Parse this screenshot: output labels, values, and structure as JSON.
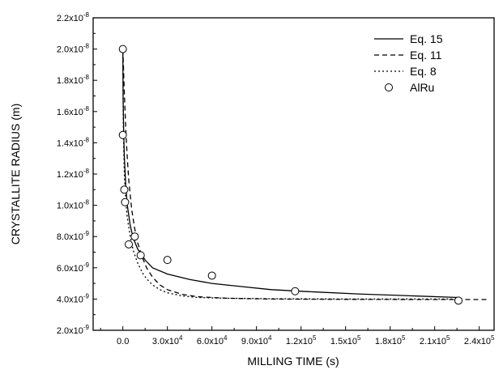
{
  "chart_data": {
    "type": "line",
    "xlabel": "MILLING TIME (s)",
    "ylabel": "CRYSTALLITE RADIUS (m)",
    "xlim": [
      -20000,
      250000
    ],
    "ylim": [
      2e-09,
      2.2e-08
    ],
    "grid": false,
    "legend_position": "top-right",
    "x_ticks": [
      {
        "value": 0,
        "base": "0.0",
        "exp": ""
      },
      {
        "value": 30000,
        "base": "3.0x10",
        "exp": "4"
      },
      {
        "value": 60000,
        "base": "6.0x10",
        "exp": "4"
      },
      {
        "value": 90000,
        "base": "9.0x10",
        "exp": "4"
      },
      {
        "value": 120000,
        "base": "1.2x10",
        "exp": "5"
      },
      {
        "value": 150000,
        "base": "1.5x10",
        "exp": "5"
      },
      {
        "value": 180000,
        "base": "1.8x10",
        "exp": "5"
      },
      {
        "value": 210000,
        "base": "2.1x10",
        "exp": "5"
      },
      {
        "value": 240000,
        "base": "2.4x10",
        "exp": "5"
      }
    ],
    "y_ticks": [
      {
        "value": 2e-09,
        "base": "2.0x10",
        "exp": "-9"
      },
      {
        "value": 4e-09,
        "base": "4.0x10",
        "exp": "-9"
      },
      {
        "value": 6e-09,
        "base": "6.0x10",
        "exp": "-9"
      },
      {
        "value": 8e-09,
        "base": "8.0x10",
        "exp": "-9"
      },
      {
        "value": 1e-08,
        "base": "1.0x10",
        "exp": "-8"
      },
      {
        "value": 1.2e-08,
        "base": "1.2x10",
        "exp": "-8"
      },
      {
        "value": 1.4e-08,
        "base": "1.4x10",
        "exp": "-8"
      },
      {
        "value": 1.6e-08,
        "base": "1.6x10",
        "exp": "-8"
      },
      {
        "value": 1.8e-08,
        "base": "1.8x10",
        "exp": "-8"
      },
      {
        "value": 2e-08,
        "base": "2.0x10",
        "exp": "-8"
      },
      {
        "value": 2.2e-08,
        "base": "2.2x10",
        "exp": "-8"
      }
    ],
    "series": [
      {
        "name": "Eq. 15",
        "style": "solid",
        "x": [
          0,
          200,
          500,
          1000,
          2000,
          3000,
          5000,
          7000,
          10000,
          15000,
          20000,
          30000,
          45000,
          60000,
          80000,
          100000,
          130000,
          160000,
          190000,
          226000
        ],
        "y": [
          2e-08,
          1.68e-08,
          1.5e-08,
          1.31e-08,
          1.12e-08,
          1e-08,
          8.7e-09,
          7.9e-09,
          7.2e-09,
          6.5e-09,
          6e-09,
          5.6e-09,
          5.25e-09,
          5e-09,
          4.8e-09,
          4.6e-09,
          4.45e-09,
          4.32e-09,
          4.22e-09,
          4.1e-09
        ]
      },
      {
        "name": "Eq. 11",
        "style": "dashed",
        "x": [
          0,
          1000,
          2000,
          3000,
          4000,
          6000,
          8000,
          10000,
          13000,
          16000,
          20000,
          25000,
          30000,
          40000,
          50000,
          70000,
          100000,
          150000,
          200000,
          226000,
          245000
        ],
        "y": [
          2e-08,
          1.72e-08,
          1.48e-08,
          1.3e-08,
          1.16e-08,
          9.7e-09,
          8.5e-09,
          7.6e-09,
          6.7e-09,
          6e-09,
          5.4e-09,
          4.9e-09,
          4.6e-09,
          4.3e-09,
          4.15e-09,
          4.05e-09,
          4e-09,
          3.98e-09,
          3.97e-09,
          3.97e-09,
          3.97e-09
        ]
      },
      {
        "name": "Eq. 8",
        "style": "dotted",
        "x": [
          0,
          200,
          500,
          1000,
          2000,
          3000,
          5000,
          7000,
          10000,
          13000,
          16000,
          20000,
          25000,
          30000,
          40000,
          50000,
          70000,
          100000,
          150000,
          200000,
          226000
        ],
        "y": [
          2e-08,
          1.62e-08,
          1.4e-08,
          1.2e-08,
          1.02e-08,
          9.2e-09,
          8e-09,
          7.1e-09,
          6.3e-09,
          5.7e-09,
          5.3e-09,
          4.9e-09,
          4.6e-09,
          4.4e-09,
          4.2e-09,
          4.1e-09,
          4.05e-09,
          4.02e-09,
          4e-09,
          4e-09,
          4e-09
        ]
      },
      {
        "name": "AlRu",
        "style": "markers",
        "x": [
          0,
          0,
          1000,
          1500,
          4000,
          8000,
          12000,
          30000,
          60000,
          116000,
          226000
        ],
        "y": [
          2e-08,
          1.45e-08,
          1.1e-08,
          1.02e-08,
          7.5e-09,
          8e-09,
          6.8e-09,
          6.5e-09,
          5.5e-09,
          4.5e-09,
          3.9e-09
        ]
      }
    ]
  }
}
